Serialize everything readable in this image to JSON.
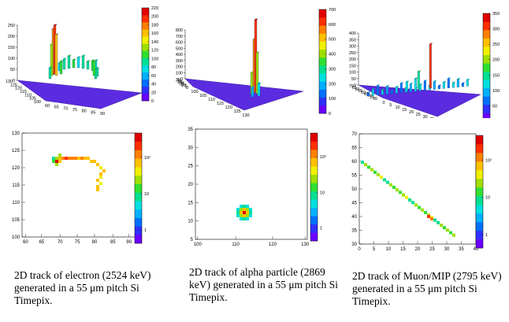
{
  "figure": {
    "panels": [
      {
        "id": "electron",
        "caption": "2D track of electron (2524 keV) generated in a 55 μm pitch Si Timepix.",
        "lego": {
          "z_ticks": [
            "0",
            "50",
            "100",
            "150",
            "200",
            "250"
          ],
          "x_ticks": [
            "130",
            "125",
            "120",
            "115",
            "110",
            "105",
            "100"
          ],
          "y_ticks": [
            "60",
            "65",
            "70",
            "75",
            "80",
            "85",
            "90"
          ],
          "palette_ticks": [
            "0",
            "20",
            "40",
            "60",
            "80",
            "100",
            "120",
            "140",
            "160",
            "180",
            "200",
            "220"
          ]
        },
        "map": {
          "x_ticks": [
            "60",
            "65",
            "70",
            "75",
            "80",
            "85",
            "90"
          ],
          "y_ticks": [
            "100",
            "105",
            "110",
            "115",
            "120",
            "125",
            "130"
          ],
          "palette_ticks": [
            "1",
            "10",
            "10²"
          ]
        }
      },
      {
        "id": "alpha",
        "caption": "2D track of alpha particle (2869 keV) generated in a 55 μm pitch Si Timepix.",
        "lego": {
          "z_ticks": [
            "0",
            "100",
            "200",
            "300",
            "400",
            "500",
            "600",
            "700",
            "800"
          ],
          "x_ticks": [
            "35",
            "30",
            "25",
            "20",
            "15",
            "10",
            "5",
            "0"
          ],
          "y_ticks": [
            "100",
            "105",
            "110",
            "115",
            "120",
            "125",
            "130"
          ],
          "palette_ticks": [
            "0",
            "100",
            "200",
            "300",
            "400",
            "500",
            "600",
            "700"
          ]
        },
        "map": {
          "x_ticks": [
            "100",
            "110",
            "120",
            "130"
          ],
          "y_ticks": [
            "5",
            "10",
            "15",
            "20",
            "25",
            "30",
            "35"
          ],
          "palette_ticks": [
            "1",
            "10",
            "10²"
          ]
        }
      },
      {
        "id": "muon",
        "caption": "2D track of Muon/MIP (2795 keV) generated in a 55 μm pitch Si Timepix.",
        "lego": {
          "z_ticks": [
            "0",
            "50",
            "100",
            "150",
            "200",
            "250",
            "300",
            "350",
            "400"
          ],
          "x_ticks": [
            "70",
            "65",
            "60",
            "55",
            "50",
            "45",
            "40",
            "35",
            "30"
          ],
          "y_ticks": [
            "0",
            "5",
            "10",
            "15",
            "20",
            "25",
            "30",
            "35",
            "40"
          ],
          "palette_ticks": [
            "0",
            "50",
            "100",
            "150",
            "200",
            "250",
            "300",
            "350"
          ]
        },
        "map": {
          "x_ticks": [
            "0",
            "5",
            "10",
            "15",
            "20",
            "25",
            "30",
            "35",
            "40"
          ],
          "y_ticks": [
            "30",
            "35",
            "40",
            "45",
            "50",
            "55",
            "60",
            "65",
            "70"
          ],
          "palette_ticks": [
            "1",
            "10",
            "10²"
          ]
        }
      }
    ]
  }
}
